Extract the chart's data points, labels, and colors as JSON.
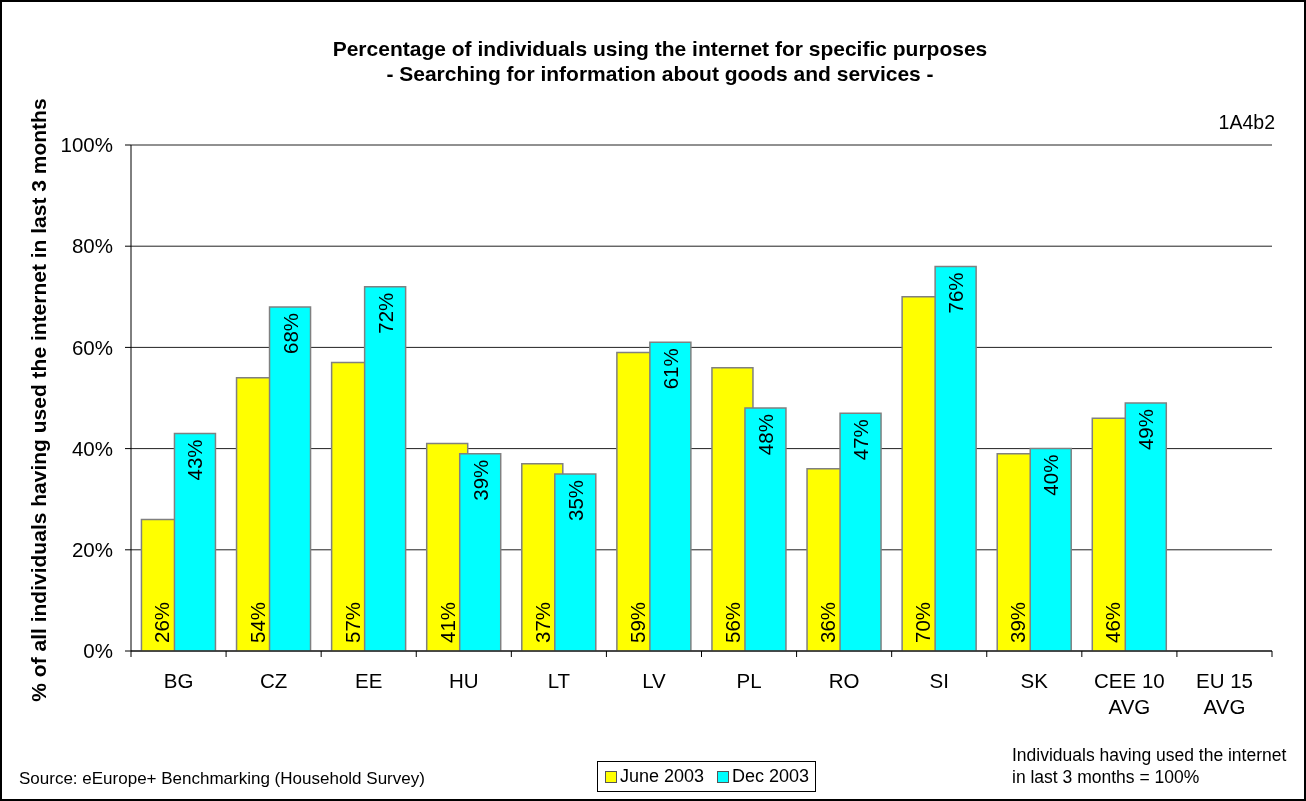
{
  "chart_data": {
    "type": "bar",
    "title": "Percentage of individuals using the internet for specific purposes",
    "subtitle": "- Searching for information about goods and services -",
    "ylabel": "% of all individuals having used the internet in last 3 months",
    "categories": [
      "BG",
      "CZ",
      "EE",
      "HU",
      "LT",
      "LV",
      "PL",
      "RO",
      "SI",
      "SK",
      "CEE 10\nAVG",
      "EU 15\nAVG"
    ],
    "series": [
      {
        "name": "June 2003",
        "color": "#ffff00",
        "values": [
          26,
          54,
          57,
          41,
          37,
          59,
          56,
          36,
          70,
          39,
          46,
          null
        ],
        "value_labels": [
          "26%",
          "54%",
          "57%",
          "41%",
          "37%",
          "59%",
          "56%",
          "36%",
          "70%",
          "39%",
          "46%",
          null
        ]
      },
      {
        "name": "Dec 2003",
        "color": "#00ffff",
        "values": [
          43,
          68,
          72,
          39,
          35,
          61,
          48,
          47,
          76,
          40,
          49,
          null
        ],
        "value_labels": [
          "43%",
          "68%",
          "72%",
          "39%",
          "35%",
          "61%",
          "48%",
          "47%",
          "76%",
          "40%",
          "49%",
          null
        ]
      }
    ],
    "ylim": [
      0,
      100
    ],
    "yticks": [
      {
        "value": 0,
        "label": "0%"
      },
      {
        "value": 20,
        "label": "20%"
      },
      {
        "value": 40,
        "label": "40%"
      },
      {
        "value": 60,
        "label": "60%"
      },
      {
        "value": 80,
        "label": "80%"
      },
      {
        "value": 100,
        "label": "100%"
      }
    ],
    "grid": "y",
    "legend": "bottom",
    "annotations": [
      "1A4b2",
      "Source: eEurope+ Benchmarking (Household Survey)",
      "Individuals having used the internet\nin last 3 months = 100%"
    ]
  }
}
